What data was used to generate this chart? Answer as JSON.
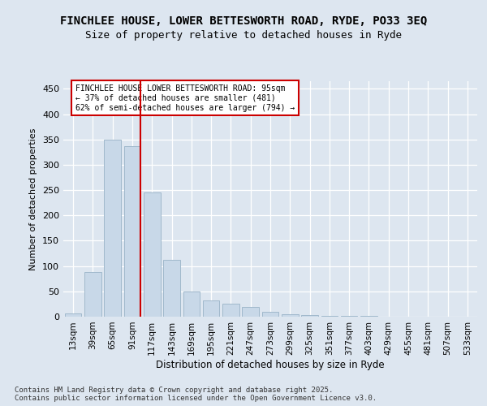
{
  "title1": "FINCHLEE HOUSE, LOWER BETTESWORTH ROAD, RYDE, PO33 3EQ",
  "title2": "Size of property relative to detached houses in Ryde",
  "xlabel": "Distribution of detached houses by size in Ryde",
  "ylabel": "Number of detached properties",
  "bar_values": [
    6,
    88,
    349,
    336,
    246,
    113,
    49,
    32,
    25,
    20,
    10,
    5,
    3,
    2,
    1,
    1,
    0,
    0,
    0,
    0,
    0
  ],
  "categories": [
    "13sqm",
    "39sqm",
    "65sqm",
    "91sqm",
    "117sqm",
    "143sqm",
    "169sqm",
    "195sqm",
    "221sqm",
    "247sqm",
    "273sqm",
    "299sqm",
    "325sqm",
    "351sqm",
    "377sqm",
    "403sqm",
    "429sqm",
    "455sqm",
    "481sqm",
    "507sqm",
    "533sqm"
  ],
  "bar_color": "#c8d8e8",
  "bar_edge_color": "#a0b8cc",
  "vline_color": "#cc0000",
  "annotation_title": "FINCHLEE HOUSE LOWER BETTESWORTH ROAD: 95sqm",
  "annotation_line1": "← 37% of detached houses are smaller (481)",
  "annotation_line2": "62% of semi-detached houses are larger (794) →",
  "annotation_box_color": "#ffffff",
  "annotation_box_edge": "#cc0000",
  "ylim": [
    0,
    465
  ],
  "yticks": [
    0,
    50,
    100,
    150,
    200,
    250,
    300,
    350,
    400,
    450
  ],
  "background_color": "#dde6f0",
  "plot_bg_color": "#dde6f0",
  "footer": "Contains HM Land Registry data © Crown copyright and database right 2025.\nContains public sector information licensed under the Open Government Licence v3.0.",
  "title_fontsize": 10,
  "subtitle_fontsize": 9
}
